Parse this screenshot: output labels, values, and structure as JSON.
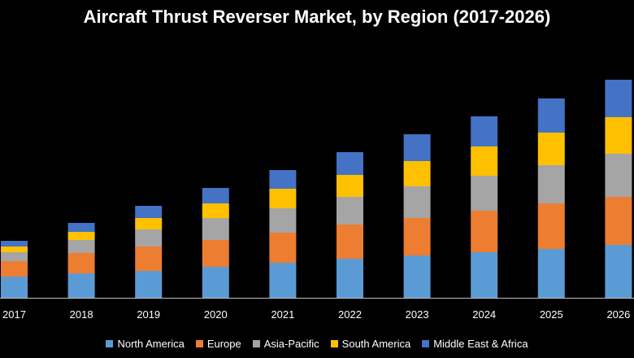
{
  "chart_data": {
    "type": "bar",
    "stacked": true,
    "title": "Aircraft Thrust Reverser Market, by Region (2017-2026)",
    "xlabel": "",
    "ylabel": "",
    "y_axis_shown": false,
    "grid": false,
    "legend_position": "bottom",
    "categories": [
      "2017",
      "2018",
      "2019",
      "2020",
      "2021",
      "2022",
      "2023",
      "2024",
      "2025",
      "2026"
    ],
    "series": [
      {
        "name": "North America",
        "color": "#5B9BD5",
        "values": [
          26,
          30,
          33,
          38,
          43,
          48,
          52,
          56,
          60,
          65
        ]
      },
      {
        "name": "Europe",
        "color": "#ED7D31",
        "values": [
          19,
          25,
          30,
          33,
          37,
          42,
          46,
          51,
          56,
          59
        ]
      },
      {
        "name": "Asia-Pacific",
        "color": "#A5A5A5",
        "values": [
          11,
          16,
          21,
          27,
          30,
          34,
          39,
          43,
          47,
          53
        ]
      },
      {
        "name": "South America",
        "color": "#FFC000",
        "values": [
          7,
          10,
          14,
          18,
          24,
          27,
          31,
          36,
          40,
          45
        ]
      },
      {
        "name": "Middle East & Africa",
        "color": "#4472C4",
        "values": [
          7,
          11,
          15,
          19,
          23,
          28,
          33,
          37,
          42,
          46
        ]
      }
    ]
  }
}
